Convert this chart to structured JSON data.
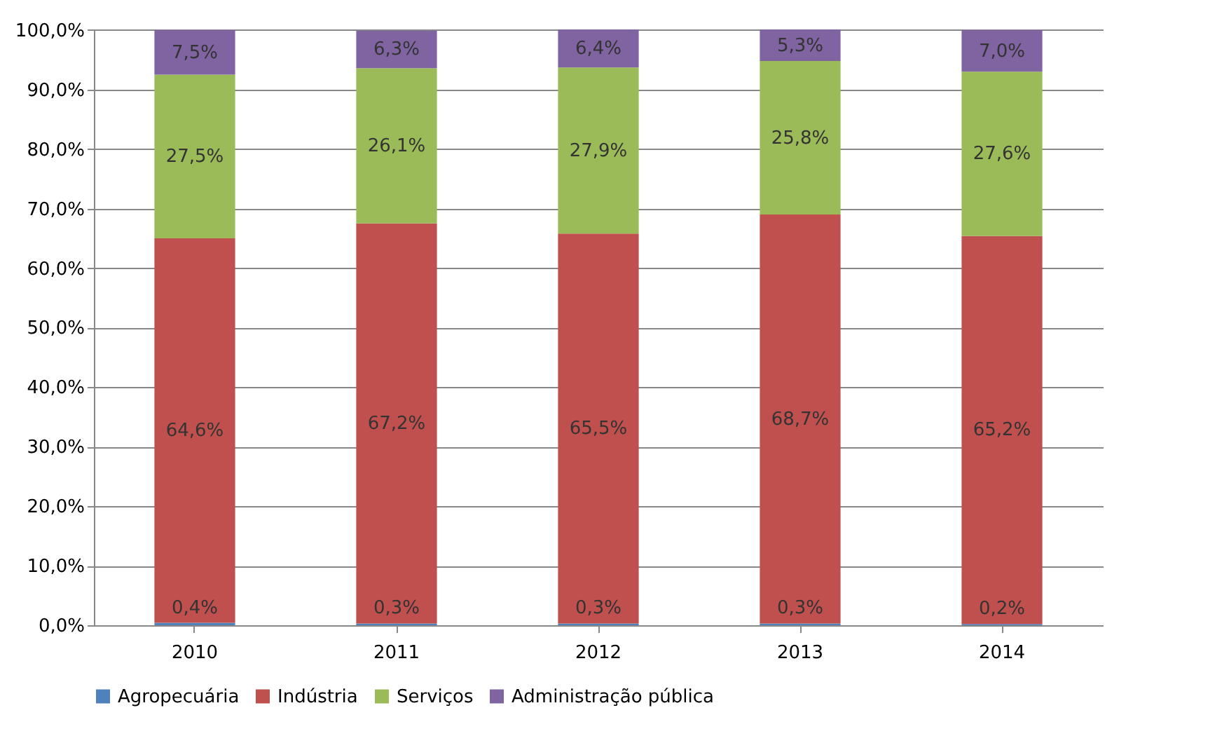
{
  "chart_data": {
    "type": "bar",
    "stacked": true,
    "categories": [
      "2010",
      "2011",
      "2012",
      "2013",
      "2014"
    ],
    "series": [
      {
        "name": "Agropecuária",
        "color": "#4f81bd",
        "values": [
          0.4,
          0.3,
          0.3,
          0.3,
          0.2
        ],
        "value_labels": [
          "0,4%",
          "0,3%",
          "0,3%",
          "0,3%",
          "0,2%"
        ]
      },
      {
        "name": "Indústria",
        "color": "#c0504d",
        "values": [
          64.6,
          67.2,
          65.5,
          68.7,
          65.2
        ],
        "value_labels": [
          "64,6%",
          "67,2%",
          "65,5%",
          "68,7%",
          "65,2%"
        ]
      },
      {
        "name": "Serviços",
        "color": "#9bbb59",
        "values": [
          27.5,
          26.1,
          27.9,
          25.8,
          27.6
        ],
        "value_labels": [
          "27,5%",
          "26,1%",
          "27,9%",
          "25,8%",
          "27,6%"
        ]
      },
      {
        "name": "Administração pública",
        "color": "#8064a2",
        "values": [
          7.5,
          6.3,
          6.4,
          5.3,
          7.0
        ],
        "value_labels": [
          "7,5%",
          "6,3%",
          "6,4%",
          "5,3%",
          "7,0%"
        ]
      }
    ],
    "ylim": [
      0,
      100.1
    ],
    "yticks": [
      {
        "value": 0,
        "label": "0,0%"
      },
      {
        "value": 10,
        "label": "10,0%"
      },
      {
        "value": 20,
        "label": "20,0%"
      },
      {
        "value": 30,
        "label": "30,0%"
      },
      {
        "value": 40,
        "label": "40,0%"
      },
      {
        "value": 50,
        "label": "50,0%"
      },
      {
        "value": 60,
        "label": "60,0%"
      },
      {
        "value": 70,
        "label": "70,0%"
      },
      {
        "value": 80,
        "label": "80,0%"
      },
      {
        "value": 90,
        "label": "90,0%"
      },
      {
        "value": 100,
        "label": "100,0%"
      }
    ],
    "grid": "y",
    "legend": "bottom"
  }
}
